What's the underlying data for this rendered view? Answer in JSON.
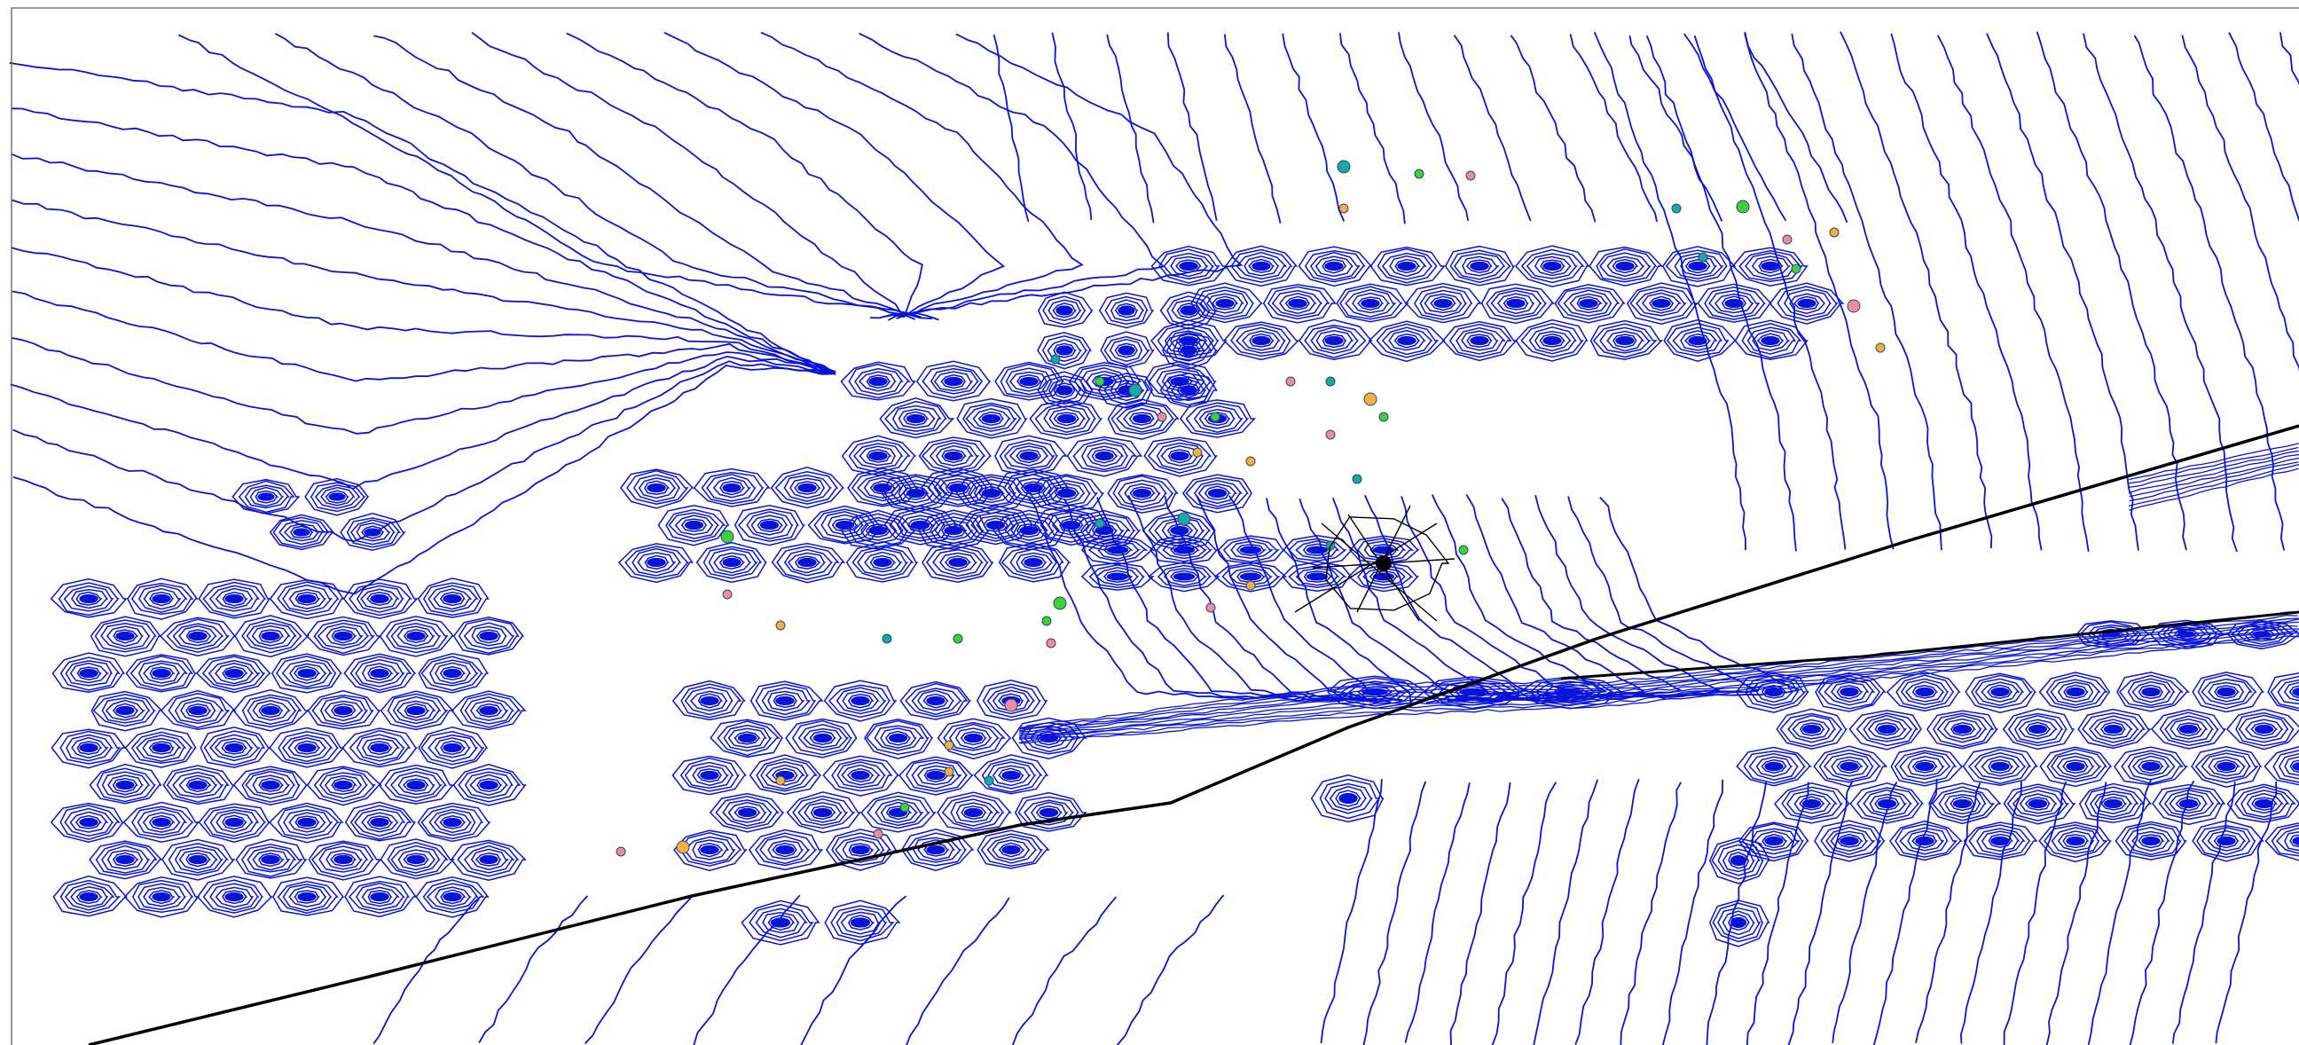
{
  "view": {
    "name": "contour-map-viewport",
    "background": "#ffffff"
  },
  "colors": {
    "contour": "#0a14d8",
    "path": "#000000",
    "frame": "#555555",
    "marker_teal": "#1aa7a7",
    "marker_green": "#3ecf3e",
    "marker_pink": "#f08aa0",
    "marker_orange": "#f2b040",
    "marker_outline": "#2a4a6a"
  },
  "icons": {
    "focus_marker": "crosshair-icon",
    "point_marker": "circle-marker-icon"
  }
}
